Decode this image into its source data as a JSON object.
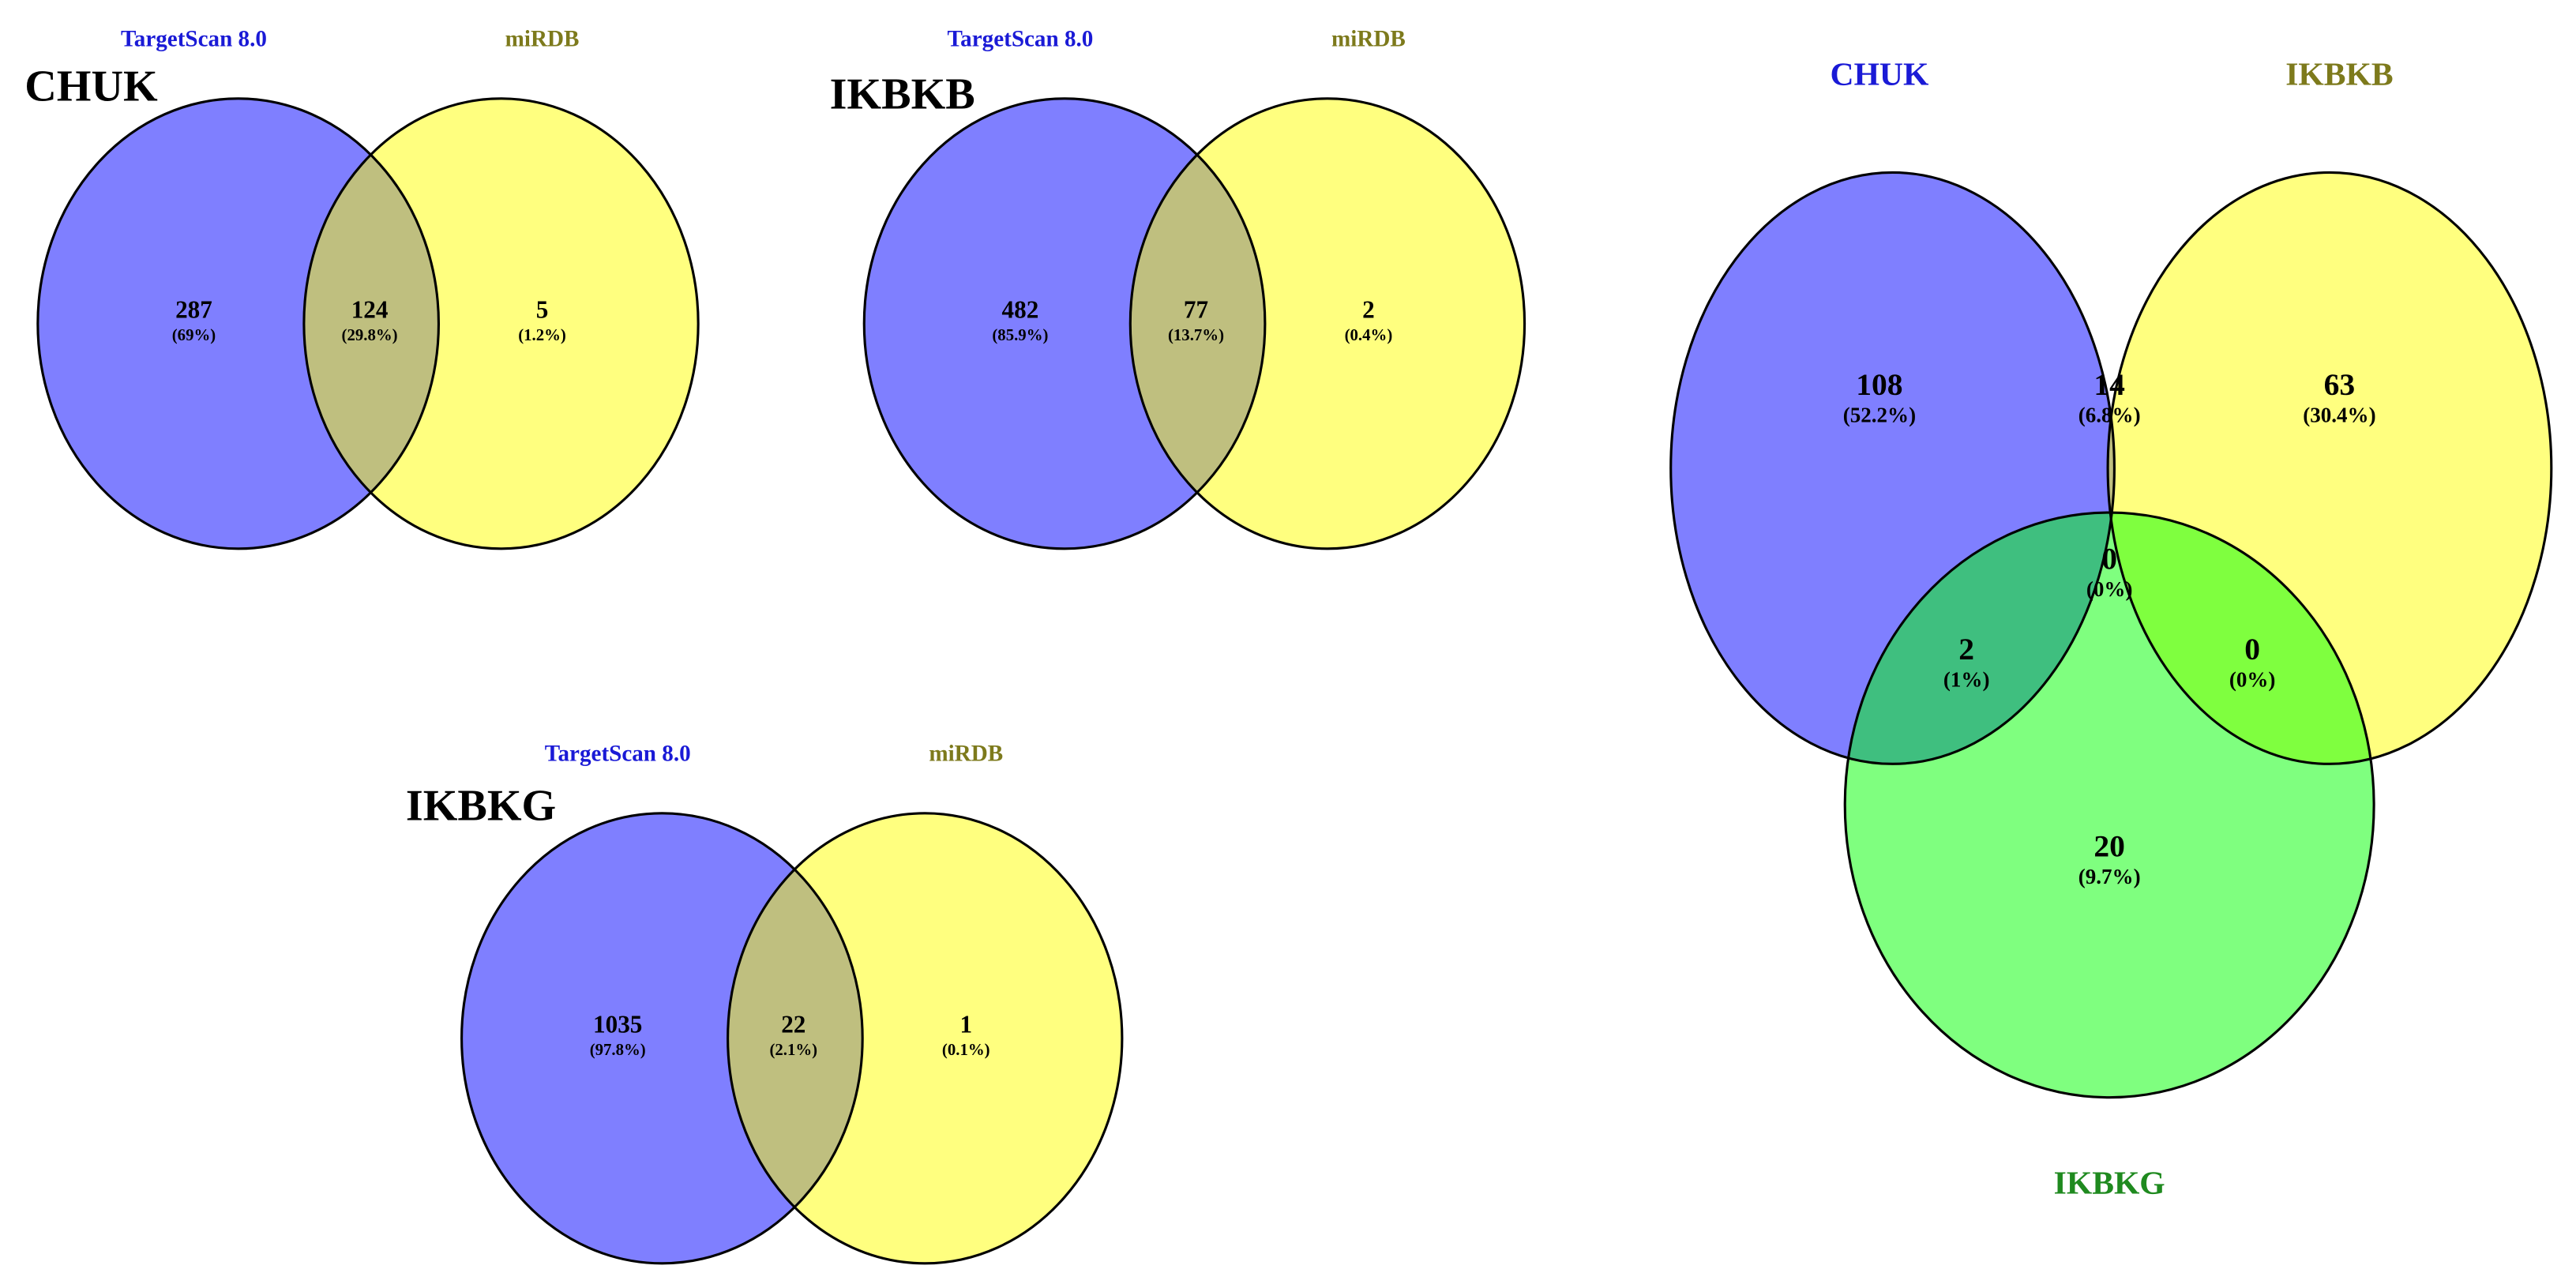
{
  "venns": [
    {
      "title": "CHUK",
      "sets": [
        "TargetScan 8.0",
        "miRDB"
      ],
      "regions": [
        {
          "count": 287,
          "pct": "(69%)"
        },
        {
          "count": 124,
          "pct": "(29.8%)"
        },
        {
          "count": 5,
          "pct": "(1.2%)"
        }
      ]
    },
    {
      "title": "IKBKB",
      "sets": [
        "TargetScan 8.0",
        "miRDB"
      ],
      "regions": [
        {
          "count": 482,
          "pct": "(85.9%)"
        },
        {
          "count": 77,
          "pct": "(13.7%)"
        },
        {
          "count": 2,
          "pct": "(0.4%)"
        }
      ]
    },
    {
      "title": "IKBKG",
      "sets": [
        "TargetScan 8.0",
        "miRDB"
      ],
      "regions": [
        {
          "count": 1035,
          "pct": "(97.8%)"
        },
        {
          "count": 22,
          "pct": "(2.1%)"
        },
        {
          "count": 1,
          "pct": "(0.1%)"
        }
      ]
    }
  ],
  "three_way": {
    "sets": [
      "CHUK",
      "IKBKB",
      "IKBKG"
    ],
    "regions": [
      {
        "count": 108,
        "pct": "(52.2%)"
      },
      {
        "count": 14,
        "pct": "(6.8%)"
      },
      {
        "count": 63,
        "pct": "(30.4%)"
      },
      {
        "count": 0,
        "pct": "(0%)"
      },
      {
        "count": 2,
        "pct": "(1%)"
      },
      {
        "count": 0,
        "pct": "(0%)"
      },
      {
        "count": 20,
        "pct": "(9.7%)"
      }
    ]
  }
}
